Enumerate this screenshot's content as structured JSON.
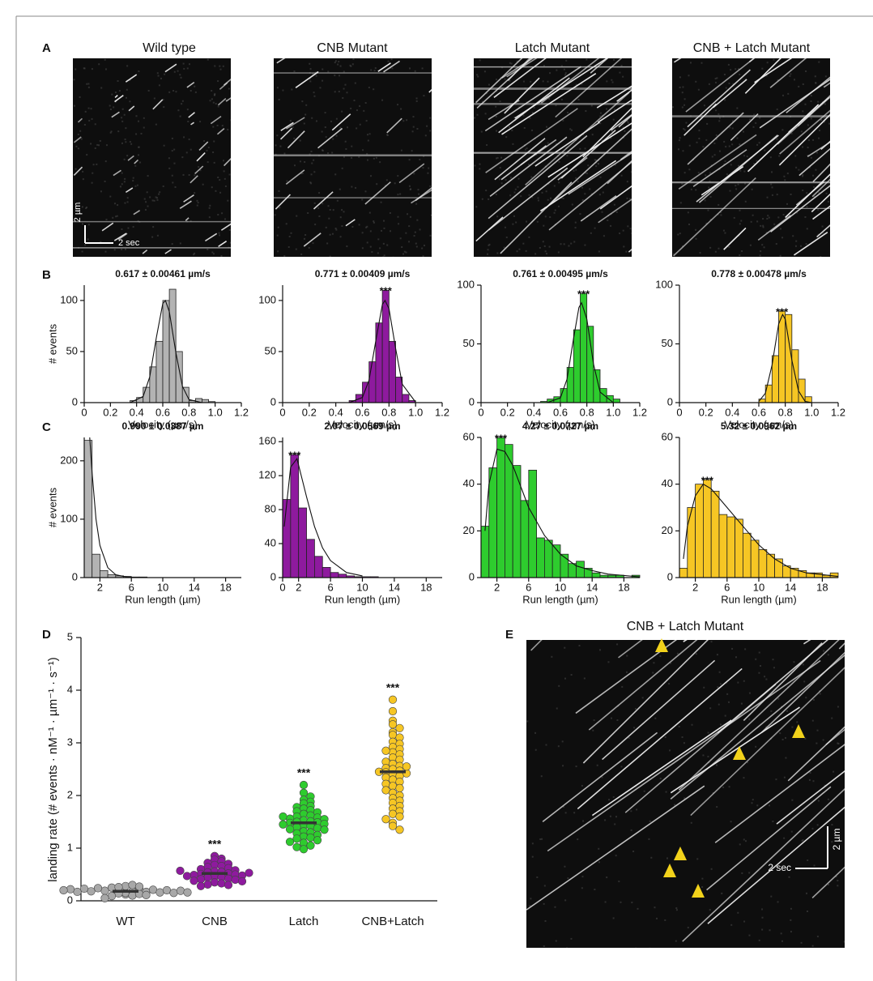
{
  "panels": [
    "A",
    "B",
    "C",
    "D",
    "E"
  ],
  "kymographs": {
    "titles": [
      "Wild type",
      "CNB Mutant",
      "Latch Mutant",
      "CNB + Latch Mutant"
    ],
    "scale_y": "2 µm",
    "scale_x": "2 sec"
  },
  "panel_e": {
    "title": "CNB + Latch Mutant",
    "scale_y": "2 µm",
    "scale_x": "2 sec"
  },
  "chart_data": [
    {
      "type": "histogram",
      "title": "0.617 ± 0.00461 µm/s",
      "xlabel": "Velocity (µm/s)",
      "ylabel": "# events",
      "color": "#b3b3b3",
      "bins": [
        0.35,
        0.4,
        0.45,
        0.5,
        0.55,
        0.6,
        0.65,
        0.7,
        0.75,
        0.8,
        0.85,
        0.9,
        0.95,
        1.0
      ],
      "counts": [
        2,
        5,
        15,
        35,
        60,
        100,
        111,
        50,
        15,
        2,
        4,
        3,
        1
      ],
      "fit": {
        "x": [
          0.35,
          0.45,
          0.5,
          0.55,
          0.6,
          0.62,
          0.65,
          0.7,
          0.75,
          0.8,
          0.9
        ],
        "values": [
          0,
          6,
          25,
          63,
          97,
          100,
          89,
          49,
          16,
          3,
          0
        ]
      },
      "xlim": [
        0,
        1.2
      ],
      "xticks": [
        0,
        0.2,
        0.4,
        0.6,
        0.8,
        {
          "value": 1,
          "label": "1.0"
        },
        1.2
      ],
      "ylim": [
        0,
        115
      ],
      "yticks": [
        0,
        50,
        100
      ]
    },
    {
      "type": "histogram",
      "title": "0.771 ± 0.00409 µm/s",
      "xlabel": "Velocity (µm/s)",
      "color": "#8e1a9e",
      "annotation": "***",
      "bins": [
        0.5,
        0.55,
        0.6,
        0.65,
        0.7,
        0.75,
        0.8,
        0.85,
        0.9,
        0.95,
        1.0
      ],
      "counts": [
        2,
        8,
        20,
        40,
        78,
        110,
        60,
        25,
        8,
        2
      ],
      "fit": {
        "x": [
          0.5,
          0.6,
          0.65,
          0.7,
          0.75,
          0.77,
          0.8,
          0.85,
          0.9,
          1.0
        ],
        "values": [
          0,
          5,
          22,
          60,
          96,
          100,
          92,
          53,
          18,
          0.5
        ]
      },
      "xlim": [
        0,
        1.2
      ],
      "xticks": [
        0,
        0.2,
        0.4,
        0.6,
        0.8,
        {
          "value": 1,
          "label": "1.0"
        },
        1.2
      ],
      "ylim": [
        0,
        115
      ],
      "yticks": [
        0,
        50,
        100
      ]
    },
    {
      "type": "histogram",
      "title": "0.761 ± 0.00495 µm/s",
      "xlabel": "Velocity (µm/s)",
      "color": "#2ecc2e",
      "annotation": "***",
      "bins": [
        0.45,
        0.5,
        0.55,
        0.6,
        0.65,
        0.7,
        0.75,
        0.8,
        0.85,
        0.9,
        0.95,
        1.0,
        1.05
      ],
      "counts": [
        1,
        3,
        5,
        12,
        30,
        62,
        93,
        65,
        28,
        12,
        6,
        3
      ],
      "fit": {
        "x": [
          0.5,
          0.6,
          0.65,
          0.7,
          0.74,
          0.76,
          0.8,
          0.85,
          0.9,
          1.0
        ],
        "values": [
          0,
          4,
          20,
          55,
          81,
          85,
          71,
          33,
          9,
          0
        ]
      },
      "xlim": [
        0,
        1.2
      ],
      "xticks": [
        0,
        0.2,
        0.4,
        0.6,
        0.8,
        {
          "value": 1,
          "label": "1.0"
        },
        1.2
      ],
      "ylim": [
        0,
        100
      ],
      "yticks": [
        0,
        50,
        100
      ]
    },
    {
      "type": "histogram",
      "title": "0.778 ± 0.00478 µm/s",
      "xlabel": "Velocity (µm/s)",
      "color": "#f6c624",
      "annotation": "***",
      "bins": [
        0.6,
        0.65,
        0.7,
        0.75,
        0.8,
        0.85,
        0.9,
        0.95,
        1.0
      ],
      "counts": [
        3,
        15,
        40,
        78,
        75,
        45,
        20,
        5
      ],
      "fit": {
        "x": [
          0.6,
          0.65,
          0.7,
          0.75,
          0.78,
          0.8,
          0.85,
          0.9,
          0.95,
          1.0
        ],
        "values": [
          1,
          8,
          32,
          67,
          75,
          71,
          36,
          10,
          1,
          0
        ]
      },
      "xlim": [
        0,
        1.2
      ],
      "xticks": [
        0,
        0.2,
        0.4,
        0.6,
        0.8,
        {
          "value": 1,
          "label": "1.0"
        },
        1.2
      ],
      "ylim": [
        0,
        100
      ],
      "yticks": [
        0,
        50,
        100
      ]
    },
    {
      "type": "histogram",
      "title": "0.990 ± 0.0387 µm",
      "xlabel": "Run length (µm)",
      "ylabel": "# events",
      "color": "#b3b3b3",
      "bins": [
        0,
        1,
        2,
        3,
        4,
        5,
        6,
        7,
        8
      ],
      "counts": [
        235,
        40,
        12,
        5,
        3,
        2,
        1,
        1
      ],
      "fit": {
        "x": [
          0.7,
          1,
          1.5,
          2,
          3,
          4,
          5,
          6,
          8
        ],
        "values": [
          240,
          180,
          100,
          55,
          17,
          5,
          2,
          0.5,
          0
        ]
      },
      "xlim": [
        0,
        20
      ],
      "xticks": [
        2,
        6,
        10,
        14,
        18
      ],
      "ylim": [
        0,
        240
      ],
      "yticks": [
        0,
        100,
        200
      ]
    },
    {
      "type": "histogram",
      "title": "2.07 ± 0.0569 µm",
      "xlabel": "Run length (µm)",
      "color": "#8e1a9e",
      "annotation": "***",
      "bins": [
        0,
        1,
        2,
        3,
        4,
        5,
        6,
        7,
        8,
        9,
        10,
        11,
        12
      ],
      "counts": [
        92,
        145,
        82,
        45,
        25,
        12,
        6,
        4,
        2,
        1,
        1,
        1
      ],
      "fit": {
        "x": [
          0.2,
          1,
          1.8,
          3,
          4,
          5,
          6,
          8,
          10
        ],
        "values": [
          60,
          130,
          140,
          95,
          60,
          35,
          20,
          6,
          2
        ]
      },
      "xlim": [
        0,
        20
      ],
      "xticks": [
        0,
        2,
        6,
        10,
        14,
        18
      ],
      "ylim": [
        0,
        165
      ],
      "yticks": [
        0,
        40,
        80,
        120,
        160
      ]
    },
    {
      "type": "histogram",
      "title": "4.27 ± 0.0727 µm",
      "xlabel": "Run length (µm)",
      "color": "#2ecc2e",
      "annotation": "***",
      "bins": [
        0,
        1,
        2,
        3,
        4,
        5,
        6,
        7,
        8,
        9,
        10,
        11,
        12,
        13,
        14,
        15,
        16,
        17,
        18,
        19,
        20
      ],
      "counts": [
        22,
        47,
        60,
        57,
        48,
        33,
        46,
        17,
        16,
        14,
        10,
        6,
        7,
        4,
        2,
        1,
        1,
        1,
        0,
        1
      ],
      "fit": {
        "x": [
          0.5,
          1,
          2,
          3,
          4,
          6,
          8,
          10,
          12,
          14,
          16,
          20
        ],
        "values": [
          20,
          40,
          55,
          54,
          48,
          30,
          18,
          10,
          5,
          3,
          1.5,
          0.3
        ]
      },
      "xlim": [
        0,
        20
      ],
      "xticks": [
        2,
        6,
        10,
        14,
        18
      ],
      "ylim": [
        0,
        60
      ],
      "yticks": [
        0,
        20,
        40,
        60
      ]
    },
    {
      "type": "histogram",
      "title": "5.32 ± 0.0962 µm",
      "xlabel": "Run length (µm)",
      "color": "#f6c624",
      "annotation": "***",
      "bins": [
        0,
        1,
        2,
        3,
        4,
        5,
        6,
        7,
        8,
        9,
        10,
        11,
        12,
        13,
        14,
        15,
        16,
        17,
        18,
        19,
        20
      ],
      "counts": [
        4,
        30,
        40,
        42,
        37,
        27,
        26,
        25,
        19,
        16,
        12,
        10,
        8,
        5,
        4,
        3,
        2,
        2,
        1,
        2
      ],
      "fit": {
        "x": [
          0.5,
          1,
          2,
          3,
          4,
          6,
          8,
          10,
          12,
          14,
          16,
          20
        ],
        "values": [
          8,
          22,
          35,
          40,
          38,
          30,
          22,
          14,
          8,
          4,
          2,
          0.5
        ]
      },
      "xlim": [
        0,
        20
      ],
      "xticks": [
        2,
        6,
        10,
        14,
        18
      ],
      "ylim": [
        0,
        60
      ],
      "yticks": [
        0,
        20,
        40,
        60
      ]
    },
    {
      "type": "strip",
      "ylabel": "landing rate  (# events · nM⁻¹ · µm⁻¹ · s⁻¹)",
      "categories": [
        "WT",
        "CNB",
        "Latch",
        "CNB+Latch"
      ],
      "ylim": [
        0,
        5
      ],
      "yticks": [
        0,
        1,
        2,
        3,
        4,
        5
      ],
      "series": [
        {
          "color": "#a8a8a8",
          "mean": 0.18,
          "values": [
            0.12,
            0.15,
            0.18,
            0.2,
            0.22,
            0.25,
            0.1,
            0.14,
            0.17,
            0.19,
            0.21,
            0.24,
            0.28,
            0.3,
            0.13,
            0.16,
            0.18,
            0.2,
            0.23,
            0.26,
            0.09,
            0.11,
            0.15,
            0.17,
            0.19,
            0.22,
            0.27,
            0.05,
            0.16,
            0.2
          ]
        },
        {
          "color": "#8e1a9e",
          "mean": 0.52,
          "annotation": "***",
          "values": [
            0.85,
            0.8,
            0.78,
            0.75,
            0.72,
            0.7,
            0.68,
            0.66,
            0.64,
            0.62,
            0.6,
            0.58,
            0.56,
            0.55,
            0.54,
            0.52,
            0.51,
            0.5,
            0.49,
            0.48,
            0.47,
            0.46,
            0.45,
            0.44,
            0.42,
            0.41,
            0.4,
            0.38,
            0.37,
            0.35,
            0.33,
            0.31,
            0.3,
            0.28,
            0.53,
            0.57
          ]
        },
        {
          "color": "#2ecc2e",
          "mean": 1.48,
          "annotation": "***",
          "values": [
            2.2,
            2.05,
            1.98,
            1.92,
            1.88,
            1.85,
            1.8,
            1.78,
            1.75,
            1.72,
            1.7,
            1.68,
            1.65,
            1.62,
            1.6,
            1.58,
            1.56,
            1.55,
            1.53,
            1.51,
            1.5,
            1.49,
            1.48,
            1.46,
            1.45,
            1.43,
            1.42,
            1.4,
            1.38,
            1.36,
            1.35,
            1.32,
            1.3,
            1.28,
            1.25,
            1.22,
            1.2,
            1.18,
            1.15,
            1.12,
            1.1,
            1.05,
            1.02,
            0.98,
            1.6
          ]
        },
        {
          "color": "#f6c624",
          "mean": 2.45,
          "annotation": "***",
          "values": [
            3.82,
            3.6,
            3.42,
            3.35,
            3.28,
            3.2,
            3.15,
            3.1,
            3.02,
            2.98,
            2.92,
            2.88,
            2.82,
            2.78,
            2.72,
            2.68,
            2.64,
            2.6,
            2.56,
            2.52,
            2.5,
            2.47,
            2.44,
            2.42,
            2.4,
            2.37,
            2.34,
            2.3,
            2.26,
            2.22,
            2.18,
            2.14,
            2.1,
            2.05,
            2.0,
            1.95,
            1.9,
            1.86,
            1.8,
            1.75,
            1.7,
            1.65,
            1.6,
            1.55,
            1.48,
            1.42,
            1.35,
            2.85,
            2.55,
            2.45
          ]
        }
      ]
    }
  ]
}
